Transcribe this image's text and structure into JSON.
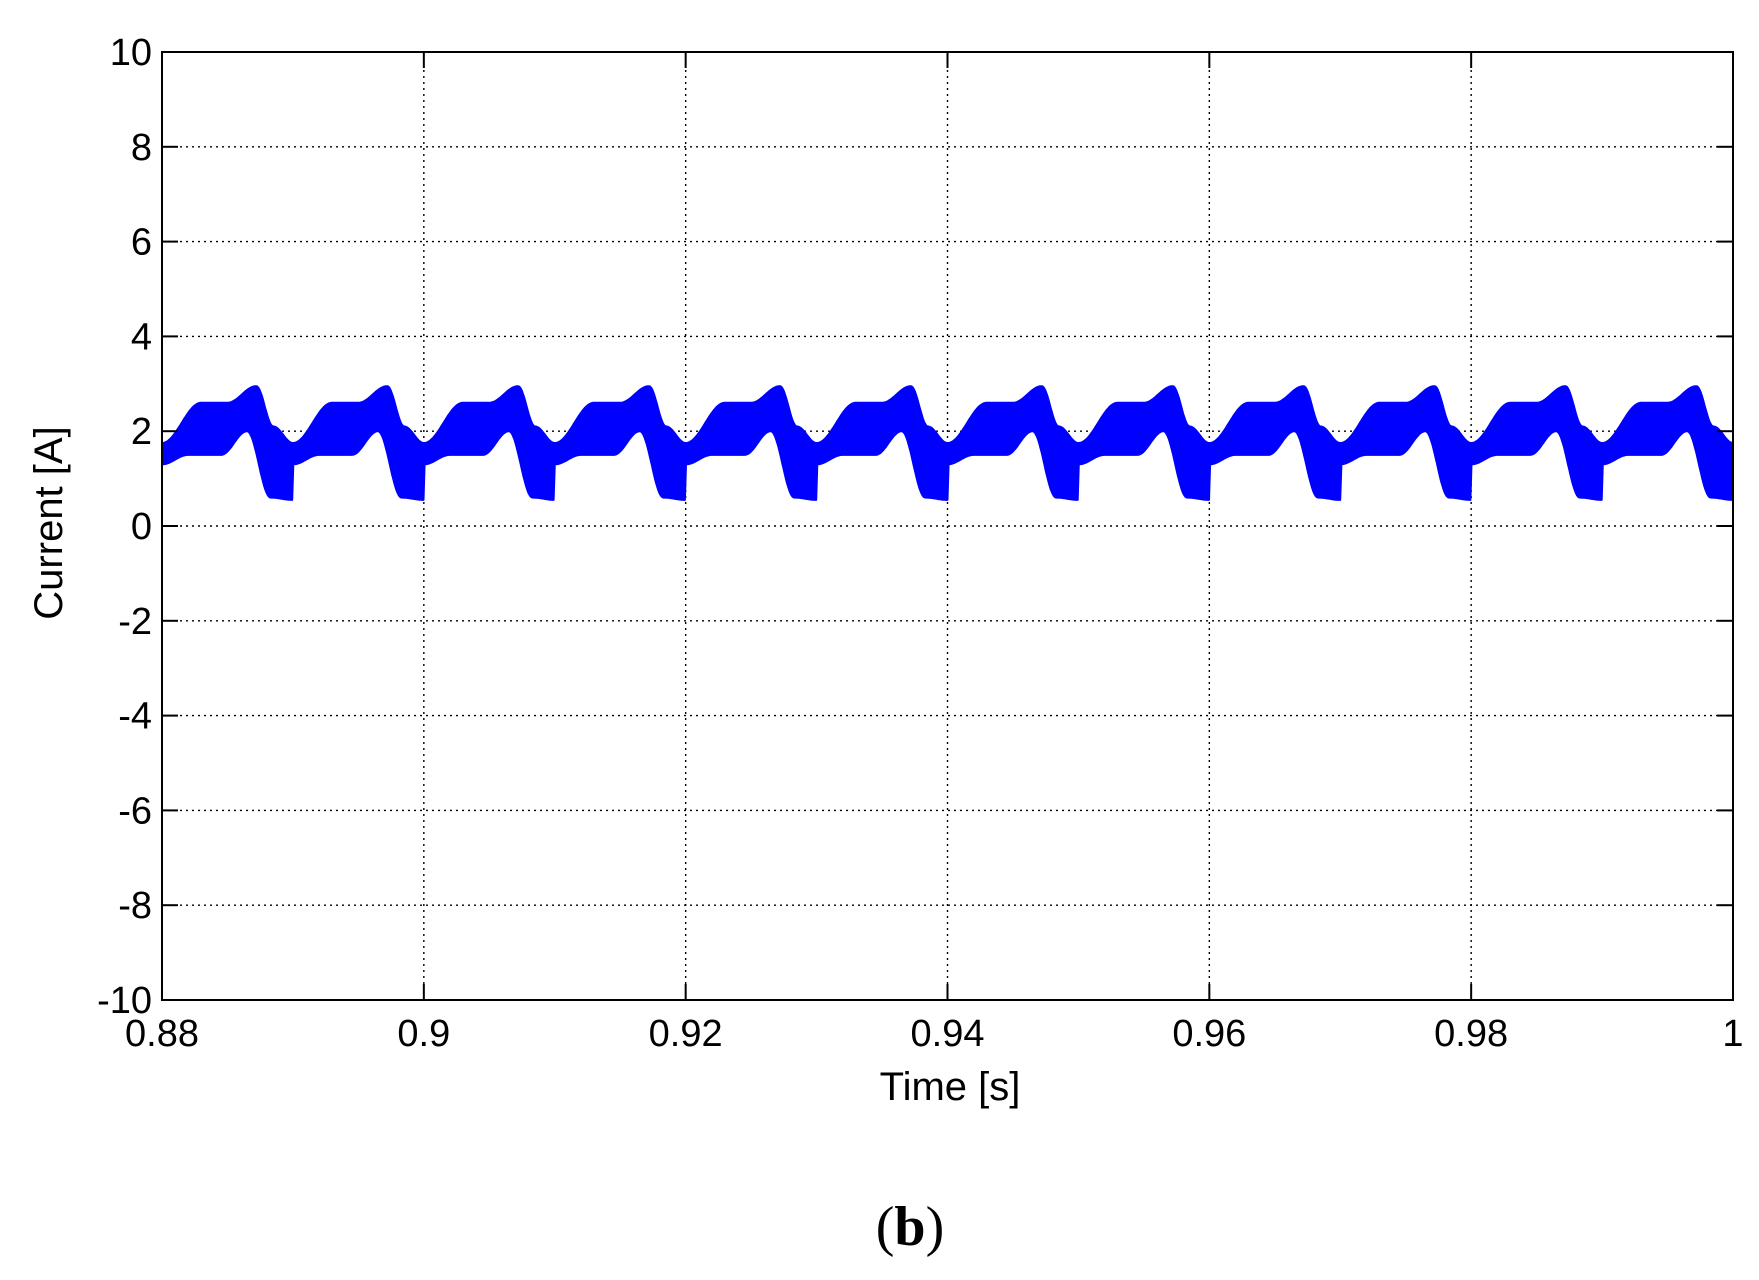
{
  "chart_data": {
    "type": "line",
    "title": "",
    "xlabel": "Time [s]",
    "ylabel": "Current [A]",
    "xlim": [
      0.88,
      1.0
    ],
    "ylim": [
      -10,
      10
    ],
    "x_ticks": [
      0.88,
      0.9,
      0.92,
      0.94,
      0.96,
      0.98,
      1.0
    ],
    "x_tick_labels": [
      "0.88",
      "0.9",
      "0.92",
      "0.94",
      "0.96",
      "0.98",
      "1"
    ],
    "y_ticks": [
      -10,
      -8,
      -6,
      -4,
      -2,
      0,
      2,
      4,
      6,
      8,
      10
    ],
    "y_tick_labels": [
      "-10",
      "-8",
      "-6",
      "-4",
      "-2",
      "0",
      "2",
      "4",
      "6",
      "8",
      "10"
    ],
    "grid": "dotted",
    "legend": "none",
    "series": [
      {
        "color": "#0000ff",
        "period": 0.01,
        "upper_envelope": [
          {
            "t": 0.0,
            "y": 1.75
          },
          {
            "t": 0.003,
            "y": 2.6
          },
          {
            "t": 0.005,
            "y": 2.6
          },
          {
            "t": 0.0072,
            "y": 2.95
          },
          {
            "t": 0.0085,
            "y": 2.1
          },
          {
            "t": 0.01,
            "y": 1.75
          }
        ],
        "lower_envelope": [
          {
            "t": 0.0,
            "y": 1.3
          },
          {
            "t": 0.002,
            "y": 1.5
          },
          {
            "t": 0.0045,
            "y": 1.5
          },
          {
            "t": 0.0065,
            "y": 2.0
          },
          {
            "t": 0.0083,
            "y": 0.6
          },
          {
            "t": 0.01,
            "y": 0.55
          }
        ]
      }
    ]
  },
  "panel_label": {
    "open": "(",
    "letter": "b",
    "close": ")"
  }
}
